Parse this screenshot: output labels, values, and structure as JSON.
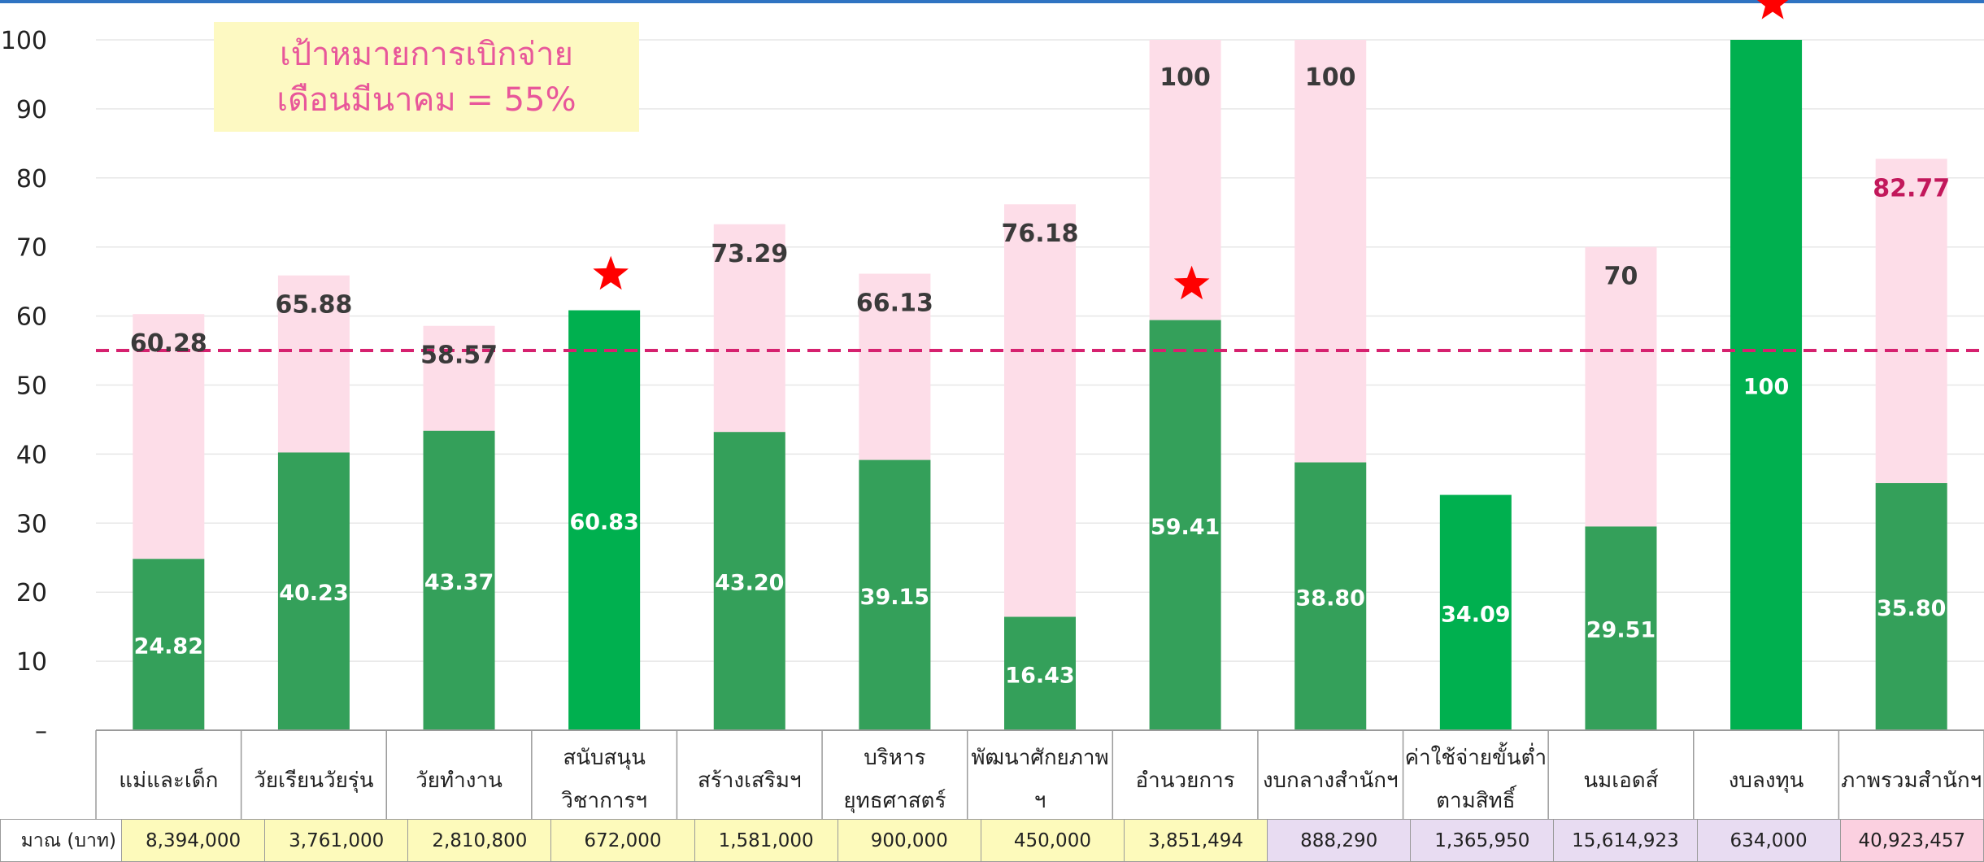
{
  "target_note": {
    "line1": "เป้าหมายการเบิกจ่าย",
    "line2": "เดือนมีนาคม = 55%"
  },
  "budget_row": {
    "label": "มาณ (บาท)",
    "values": [
      "8,394,000",
      "3,761,000",
      "2,810,800",
      "672,000",
      "1,581,000",
      "900,000",
      "450,000",
      "3,851,494",
      "888,290",
      "1,365,950",
      "15,614,923",
      "634,000",
      "40,923,457"
    ],
    "colors": [
      "#fdfabb",
      "#fdfabb",
      "#fdfabb",
      "#fdfabb",
      "#fdfabb",
      "#fdfabb",
      "#fdfabb",
      "#fdfabb",
      "#e8dcf2",
      "#e8dcf2",
      "#e8dcf2",
      "#e8dcf2",
      "#fbd0e0"
    ]
  },
  "chart_data": {
    "type": "bar",
    "ylim": [
      0,
      100
    ],
    "yticks": [
      "–",
      "10",
      "20",
      "30",
      "40",
      "50",
      "60",
      "70",
      "80",
      "90",
      "100"
    ],
    "categories": [
      [
        "แม่และเด็ก"
      ],
      [
        "วัยเรียนวัยรุ่น"
      ],
      [
        "วัยทำงาน"
      ],
      [
        "สนับสนุน",
        "วิชาการฯ"
      ],
      [
        "สร้างเสริมฯ"
      ],
      [
        "บริหาร",
        "ยุทธศาสตร์"
      ],
      [
        "พัฒนาศักยภาพ",
        "ฯ"
      ],
      [
        "อำนวยการ"
      ],
      [
        "งบกลางสำนักฯ"
      ],
      [
        "ค่าใช้จ่ายขั้นต่ำ",
        "ตามสิทธิ์"
      ],
      [
        "นมเอดส์"
      ],
      [
        "งบลงทุน"
      ],
      [
        "ภาพรวมสำนักฯ"
      ]
    ],
    "series": [
      {
        "values": [
          24.82,
          40.23,
          43.37,
          60.83,
          43.2,
          39.15,
          16.43,
          59.41,
          38.8,
          34.09,
          29.51,
          100,
          35.8
        ],
        "labels": [
          "24.82",
          "40.23",
          "43.37",
          "60.83",
          "43.20",
          "39.15",
          "16.43",
          "59.41",
          "38.80",
          "34.09",
          "29.51",
          "100",
          "35.80"
        ]
      },
      {
        "values": [
          60.28,
          65.88,
          58.57,
          null,
          73.29,
          66.13,
          76.18,
          100,
          100,
          null,
          70,
          null,
          82.77
        ],
        "labels": [
          "60.28",
          "65.88",
          "58.57",
          "",
          "73.29",
          "66.13",
          "76.18",
          "100",
          "100",
          "",
          "70",
          "",
          "82.77"
        ]
      }
    ],
    "highlighted": [
      false,
      false,
      false,
      true,
      false,
      false,
      false,
      false,
      false,
      true,
      false,
      true,
      false
    ],
    "starred": [
      false,
      false,
      false,
      true,
      false,
      false,
      false,
      true,
      false,
      false,
      false,
      true,
      false
    ],
    "target_line": 55,
    "colors": {
      "bar": "#34a05a",
      "bar_highlight": "#00b04f",
      "bar_bg": "#fddde8",
      "target_line": "#d6216f",
      "star": "#ff0000",
      "label": "#3a3a3a",
      "label_total": "#c2185b",
      "grid": "#e7e7e7"
    }
  }
}
